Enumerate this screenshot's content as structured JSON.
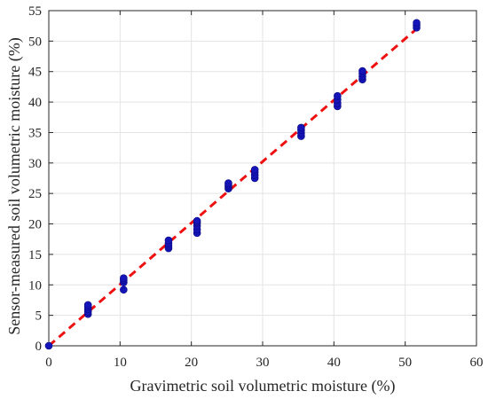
{
  "chart_data": {
    "type": "scatter",
    "xlabel": "Gravimetric soil volumetric moisture (%)",
    "ylabel": "Sensor-measured soil volumetric moisture (%)",
    "xlim": [
      0,
      60
    ],
    "ylim": [
      0,
      55
    ],
    "xticks": [
      0,
      10,
      20,
      30,
      40,
      50,
      60
    ],
    "yticks": [
      0,
      5,
      10,
      15,
      20,
      25,
      30,
      35,
      40,
      45,
      50,
      55
    ],
    "grid": true,
    "series": [
      {
        "kind": "points",
        "color": "#1414b8",
        "points": [
          [
            0,
            0
          ],
          [
            5.5,
            5.2
          ],
          [
            5.5,
            5.6
          ],
          [
            5.5,
            6.0
          ],
          [
            5.5,
            6.4
          ],
          [
            5.5,
            6.7
          ],
          [
            10.5,
            9.2
          ],
          [
            10.5,
            10.4
          ],
          [
            10.5,
            10.8
          ],
          [
            10.5,
            11.1
          ],
          [
            16.8,
            16.0
          ],
          [
            16.8,
            16.4
          ],
          [
            16.8,
            16.8
          ],
          [
            16.8,
            17.3
          ],
          [
            20.8,
            18.5
          ],
          [
            20.8,
            19.1
          ],
          [
            20.8,
            19.7
          ],
          [
            20.8,
            20.2
          ],
          [
            20.8,
            20.5
          ],
          [
            25.2,
            25.8
          ],
          [
            25.2,
            26.1
          ],
          [
            25.2,
            26.4
          ],
          [
            25.2,
            26.7
          ],
          [
            28.9,
            27.5
          ],
          [
            28.9,
            28.0
          ],
          [
            28.9,
            28.5
          ],
          [
            28.9,
            28.9
          ],
          [
            35.4,
            34.4
          ],
          [
            35.4,
            34.9
          ],
          [
            35.4,
            35.4
          ],
          [
            35.4,
            35.8
          ],
          [
            40.5,
            39.3
          ],
          [
            40.5,
            39.8
          ],
          [
            40.5,
            40.4
          ],
          [
            40.5,
            41.0
          ],
          [
            44.0,
            43.7
          ],
          [
            44.0,
            44.2
          ],
          [
            44.0,
            44.7
          ],
          [
            44.0,
            45.1
          ],
          [
            51.6,
            52.2
          ],
          [
            51.6,
            52.6
          ],
          [
            51.6,
            53.0
          ]
        ]
      },
      {
        "kind": "fit-line",
        "color": "#ee1111",
        "style": "dashed",
        "x": [
          0,
          51.6
        ],
        "y": [
          0,
          52.0
        ]
      }
    ]
  }
}
